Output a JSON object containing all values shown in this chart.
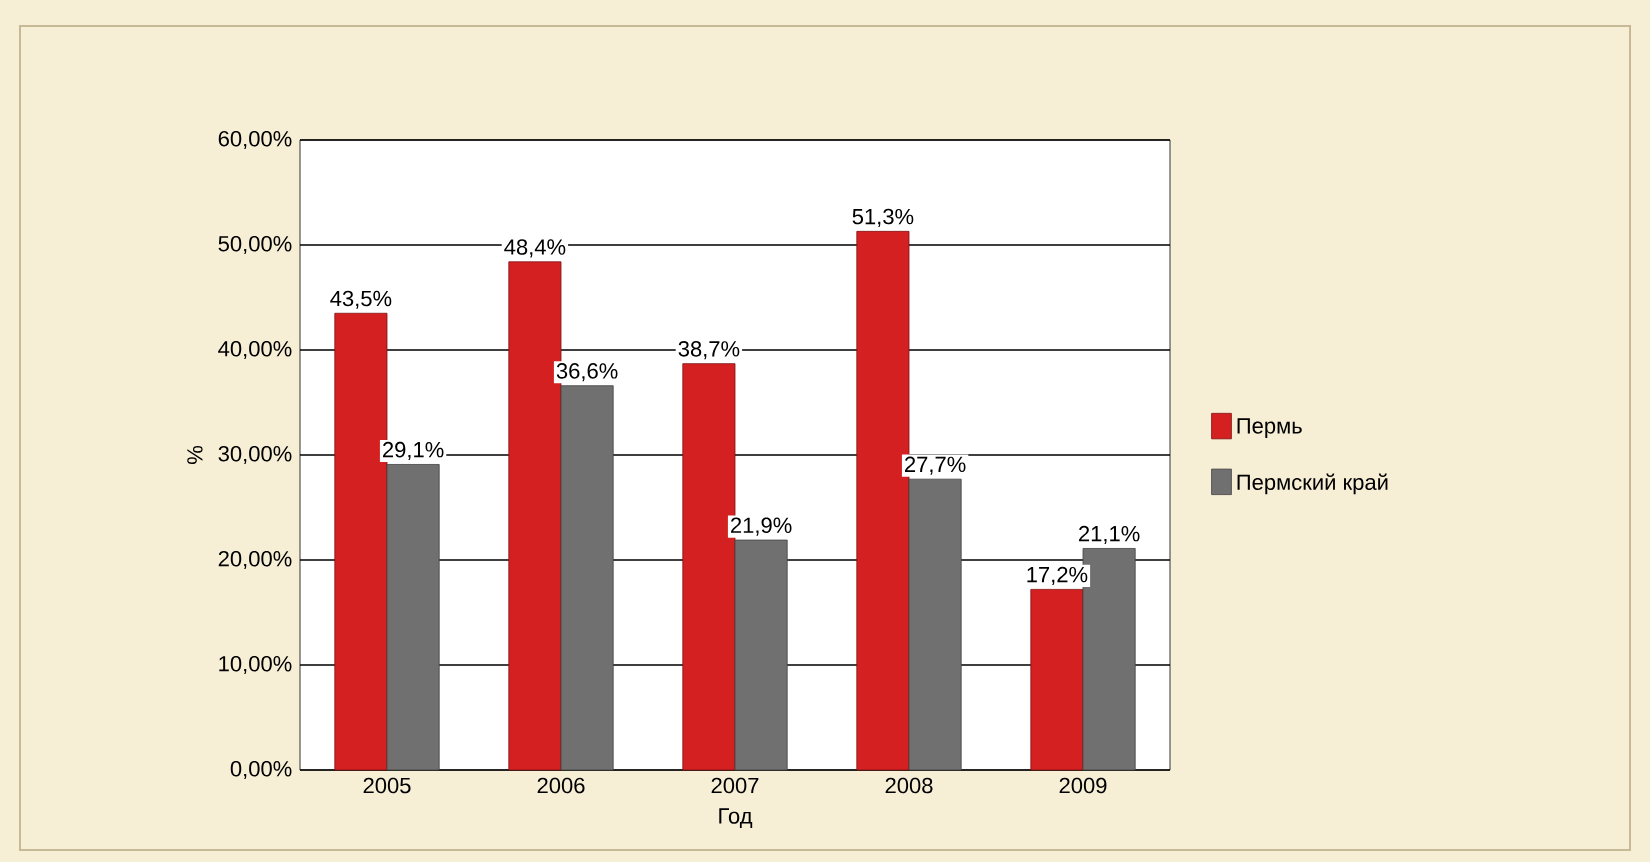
{
  "chart_data": {
    "type": "bar",
    "xlabel": "Год",
    "ylabel": "%",
    "categories": [
      "2005",
      "2006",
      "2007",
      "2008",
      "2009"
    ],
    "series": [
      {
        "name": "Пермь",
        "color": "#d42020",
        "values": [
          43.5,
          48.4,
          38.7,
          51.3,
          17.2
        ],
        "value_labels": [
          "43,5%",
          "48,4%",
          "38,7%",
          "51,3%",
          "17,2%"
        ]
      },
      {
        "name": "Пермский край",
        "color": "#707070",
        "values": [
          29.1,
          36.6,
          21.9,
          27.7,
          21.1
        ],
        "value_labels": [
          "29,1%",
          "36,6%",
          "21,9%",
          "27,7%",
          "21,1%"
        ]
      }
    ],
    "ylim": [
      0,
      60
    ],
    "yticks": [
      {
        "value": 0,
        "label": "0,00%"
      },
      {
        "value": 10,
        "label": "10,00%"
      },
      {
        "value": 20,
        "label": "20,00%"
      },
      {
        "value": 30,
        "label": "30,00%"
      },
      {
        "value": 40,
        "label": "40,00%"
      },
      {
        "value": 50,
        "label": "50,00%"
      },
      {
        "value": 60,
        "label": "60,00%"
      }
    ],
    "grid": "y",
    "legend": "right"
  }
}
